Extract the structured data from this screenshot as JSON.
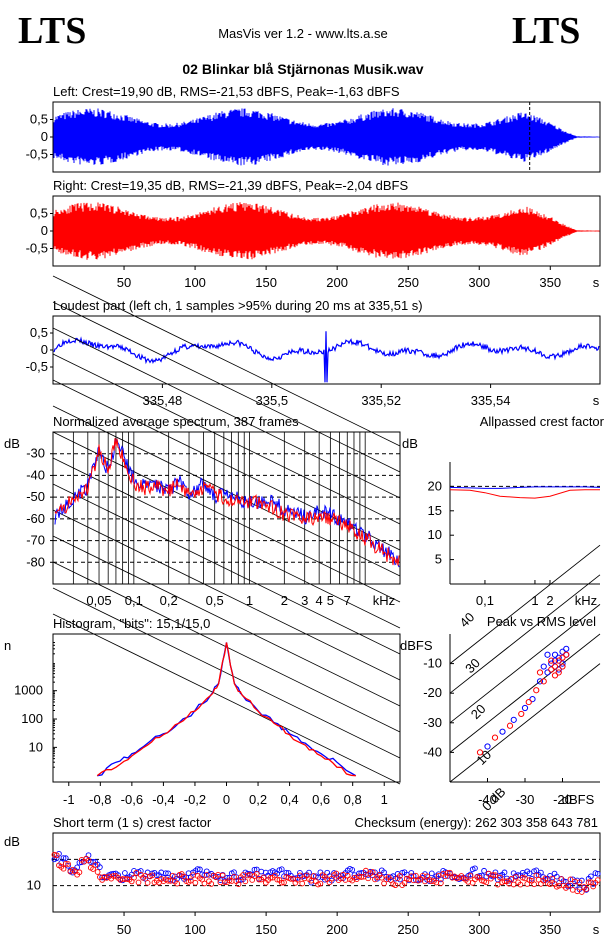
{
  "header": {
    "logo_left": "LTS",
    "logo_right": "LTS",
    "app_title": "MasVis ver 1.2 - www.lts.a.se",
    "file_title": "02 Blinkar blå Stjärnonas Musik.wav"
  },
  "colors": {
    "left_channel": "#0000ff",
    "right_channel": "#ff0000",
    "axis": "#000000"
  },
  "chart_data": [
    {
      "id": "left-waveform",
      "type": "line",
      "title": "Left: Crest=19,90 dB, RMS=-21,53 dBFS, Peak=-1,63 dBFS",
      "crest_db": 19.9,
      "rms_dbfs": -21.53,
      "peak_dbfs": -1.63,
      "ylim": [
        -1,
        1
      ],
      "yticks": [
        "0,5",
        "0",
        "-0,5"
      ],
      "xlim": [
        0,
        385
      ],
      "loudest_marker_s": 335.51,
      "duration_s": 385
    },
    {
      "id": "right-waveform",
      "type": "line",
      "title": "Right: Crest=19,35 dB, RMS=-21,39 dBFS, Peak=-2,04 dBFS",
      "crest_db": 19.35,
      "rms_dbfs": -21.39,
      "peak_dbfs": -2.04,
      "ylim": [
        -1,
        1
      ],
      "yticks": [
        "0,5",
        "0",
        "-0,5"
      ],
      "xlim": [
        0,
        385
      ],
      "xticks": [
        "50",
        "100",
        "150",
        "200",
        "250",
        "300",
        "350"
      ],
      "xunit": "s"
    },
    {
      "id": "loudest-part",
      "type": "line",
      "title": "Loudest part (left  ch, 1 samples >95% during 20 ms at 335,51 s)",
      "ylim": [
        -1,
        1
      ],
      "yticks": [
        "0,5",
        "0",
        "-0,5"
      ],
      "xlim": [
        335.46,
        335.56
      ],
      "xticks": [
        "335,48",
        "335,5",
        "335,52",
        "335,54"
      ],
      "xunit": "s"
    },
    {
      "id": "average-spectrum",
      "type": "line",
      "title": "Normalized average spectrum, 387 frames",
      "ylabel": "dB",
      "ylim": [
        -90,
        -20
      ],
      "yticks": [
        "-30",
        "-40",
        "-50",
        "-60",
        "-70",
        "-80"
      ],
      "xscale": "log",
      "xlim_khz": [
        0.02,
        20
      ],
      "xticks": [
        "0,05",
        "0,1",
        "0,2",
        "0,5",
        "1",
        "2",
        "3",
        "4",
        "5",
        "7"
      ],
      "xunit": "kHz",
      "freqs_khz": [
        0.02,
        0.025,
        0.03,
        0.04,
        0.05,
        0.06,
        0.07,
        0.08,
        0.1,
        0.12,
        0.15,
        0.2,
        0.25,
        0.3,
        0.4,
        0.5,
        0.7,
        1,
        1.5,
        2,
        3,
        4,
        5,
        7,
        10,
        15,
        20
      ],
      "series": [
        {
          "name": "Left",
          "values": [
            -60,
            -55,
            -50,
            -45,
            -28,
            -38,
            -25,
            -30,
            -42,
            -45,
            -44,
            -46,
            -43,
            -48,
            -44,
            -49,
            -50,
            -53,
            -51,
            -56,
            -59,
            -57,
            -58,
            -62,
            -67,
            -75,
            -80
          ]
        },
        {
          "name": "Right",
          "values": [
            -60,
            -55,
            -51,
            -46,
            -29,
            -37,
            -24,
            -32,
            -43,
            -46,
            -45,
            -47,
            -44,
            -49,
            -46,
            -48,
            -52,
            -52,
            -54,
            -58,
            -60,
            -60,
            -60,
            -63,
            -69,
            -76,
            -80
          ]
        }
      ]
    },
    {
      "id": "allpassed-crest",
      "type": "line",
      "title": "Allpassed crest factor",
      "ylabel": "dB",
      "ylim": [
        0,
        25
      ],
      "yticks": [
        "20",
        "15",
        "10",
        "5"
      ],
      "xscale": "log",
      "xlim_khz": [
        0.02,
        20
      ],
      "xticks": [
        "0,1",
        "1",
        "2"
      ],
      "xunit": "kHz",
      "freqs_khz": [
        0.02,
        0.05,
        0.1,
        0.2,
        0.5,
        1,
        2,
        5,
        10,
        20
      ],
      "series": [
        {
          "name": "Left",
          "values": [
            19.8,
            19.7,
            19.6,
            19.6,
            19.8,
            19.9,
            19.9,
            19.9,
            19.9,
            19.8
          ]
        },
        {
          "name": "Right",
          "values": [
            19.3,
            19.2,
            18.7,
            18.0,
            17.7,
            17.6,
            18.0,
            19.2,
            19.3,
            19.3
          ]
        }
      ]
    },
    {
      "id": "histogram",
      "type": "line",
      "title": "Histogram, \"bits\": 15,1/15,0",
      "ylabel": "n",
      "yscale": "log",
      "yticks": [
        "1000",
        "100",
        "10"
      ],
      "xlim": [
        -1.1,
        1.1
      ],
      "xticks": [
        "-1",
        "-0,8",
        "-0,6",
        "-0,4",
        "-0,2",
        "0",
        "0,2",
        "0,4",
        "0,6",
        "0,8",
        "1"
      ],
      "bits_left": 15.1,
      "bits_right": 15.0,
      "x": [
        -0.82,
        -0.7,
        -0.6,
        -0.5,
        -0.4,
        -0.3,
        -0.2,
        -0.1,
        -0.05,
        0,
        0.05,
        0.1,
        0.2,
        0.3,
        0.4,
        0.5,
        0.6,
        0.7,
        0.82
      ],
      "series": [
        {
          "name": "Left",
          "values": [
            1,
            3,
            6,
            14,
            30,
            75,
            200,
            700,
            1800,
            50000,
            1800,
            700,
            200,
            75,
            30,
            14,
            6,
            3,
            1
          ]
        },
        {
          "name": "Right",
          "values": [
            1,
            2,
            5,
            12,
            28,
            72,
            190,
            680,
            1750,
            50000,
            1750,
            680,
            190,
            72,
            28,
            12,
            5,
            2,
            1
          ]
        }
      ]
    },
    {
      "id": "peak-vs-rms",
      "type": "scatter",
      "title": "Peak vs RMS level",
      "ylabel": "dBFS",
      "xunit": "dBFS",
      "ylim": [
        -50,
        0
      ],
      "xlim": [
        -50,
        -10
      ],
      "yticks": [
        "-10",
        "-20",
        "-30",
        "-40"
      ],
      "xticks": [
        "-40",
        "-30",
        "-20"
      ],
      "diagonal_labels": [
        "40",
        "30",
        "20",
        "10",
        "0 dB"
      ],
      "series": [
        {
          "name": "Left",
          "x": [
            -40,
            -36,
            -33,
            -30,
            -28,
            -26,
            -24,
            -23,
            -22,
            -21,
            -20,
            -19,
            -21,
            -22,
            -20,
            -19,
            -24,
            -25
          ],
          "y": [
            -38,
            -33,
            -29,
            -25,
            -22,
            -16,
            -13,
            -10,
            -9,
            -8,
            -6,
            -5,
            -12,
            -7,
            -10,
            -7,
            -7,
            -11
          ]
        },
        {
          "name": "Right",
          "x": [
            -42,
            -38,
            -34,
            -31,
            -29,
            -27,
            -25,
            -23,
            -22,
            -21,
            -20,
            -19,
            -22,
            -21,
            -20,
            -23,
            -26
          ],
          "y": [
            -40,
            -35,
            -31,
            -27,
            -23,
            -19,
            -16,
            -12,
            -11,
            -9,
            -8,
            -7,
            -14,
            -13,
            -11,
            -9,
            -13
          ]
        }
      ]
    },
    {
      "id": "short-term-crest",
      "type": "scatter",
      "title": "Short term (1 s) crest factor",
      "checksum_label": "Checksum (energy):",
      "checksum_value": "262 303 358 643 781",
      "ylabel": "dB",
      "ylim": [
        0,
        30
      ],
      "yticks": [
        "10"
      ],
      "xlim": [
        0,
        385
      ],
      "xticks": [
        "50",
        "100",
        "150",
        "200",
        "250",
        "300",
        "350"
      ],
      "xunit": "s",
      "t": [
        2,
        8,
        15,
        22,
        28,
        35,
        45,
        60,
        80,
        100,
        120,
        140,
        160,
        180,
        200,
        220,
        240,
        260,
        280,
        300,
        320,
        340,
        360,
        375,
        383
      ],
      "series": [
        {
          "name": "Left",
          "values": [
            22,
            19,
            16,
            20,
            21,
            14,
            13,
            14,
            13,
            15,
            13,
            14,
            15,
            13,
            14,
            15,
            14,
            13,
            14,
            15,
            13,
            14,
            12,
            10,
            14
          ]
        },
        {
          "name": "Right",
          "values": [
            20,
            17,
            15,
            19,
            18,
            12,
            12,
            13,
            12,
            13,
            12,
            13,
            13,
            12,
            13,
            14,
            12,
            12,
            13,
            13,
            12,
            12,
            11,
            9,
            12
          ]
        }
      ]
    }
  ]
}
